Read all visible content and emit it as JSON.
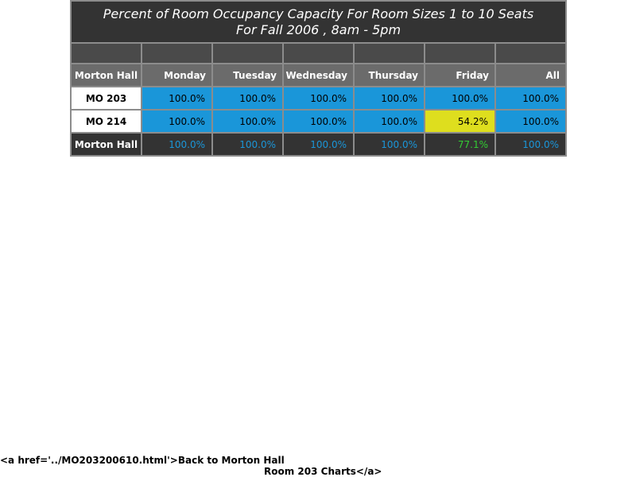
{
  "title_line1": "Percent of Room Occupancy Capacity For Room Sizes 1 to 10 Seats",
  "title_line2": "For Fall 2006  , 8am - 5pm",
  "headers": [
    "Morton Hall",
    "Monday",
    "Tuesday",
    "Wednesday",
    "Thursday",
    "Friday",
    "All"
  ],
  "rows": [
    {
      "label": "MO 203",
      "values": [
        "100.0%",
        "100.0%",
        "100.0%",
        "100.0%",
        "100.0%",
        "100.0%"
      ]
    },
    {
      "label": "MO 214",
      "values": [
        "100.0%",
        "100.0%",
        "100.0%",
        "100.0%",
        "54.2%",
        "100.0%"
      ]
    }
  ],
  "total": {
    "label": "Morton Hall",
    "values": [
      "100.0%",
      "100.0%",
      "100.0%",
      "100.0%",
      "77.1%",
      "100.0%"
    ]
  },
  "footer": {
    "line1": "<a href='../MO203200610.html'>Back to Morton Hall",
    "line2": "Room 203 Charts</a>"
  },
  "colors": {
    "blue": "#1a96d9",
    "yellow": "#dede1e",
    "green_text": "#33cc33",
    "dark": "#333333"
  }
}
